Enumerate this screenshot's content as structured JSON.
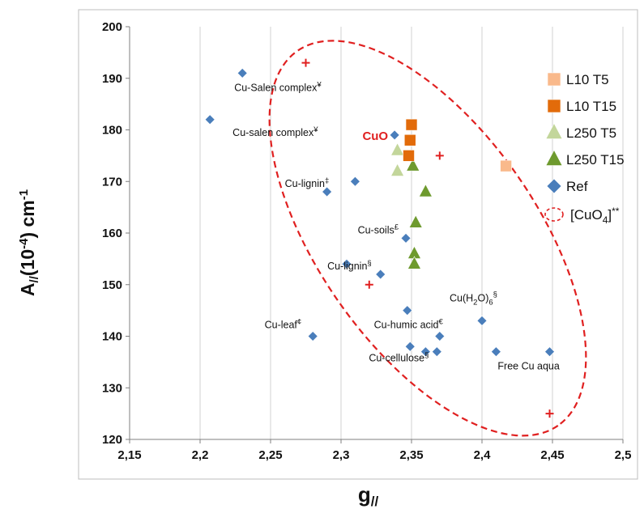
{
  "chart_data": {
    "type": "scatter",
    "xlabel": "g//",
    "ylabel": "A//(10-4) cm-1",
    "xlim": [
      2.15,
      2.5
    ],
    "ylim": [
      120,
      200
    ],
    "x_ticks": [
      "2,15",
      "2,2",
      "2,25",
      "2,3",
      "2,35",
      "2,4",
      "2,45",
      "2,5"
    ],
    "y_ticks": [
      "120",
      "130",
      "140",
      "150",
      "160",
      "170",
      "180",
      "190",
      "200"
    ],
    "grid": "vertical",
    "legend_position": "right",
    "series": [
      {
        "name": "L10 T5",
        "marker": "square",
        "color": "#f9b98b",
        "points": [
          [
            2.417,
            173
          ]
        ]
      },
      {
        "name": "L10 T15",
        "marker": "square",
        "color": "#e26b0a",
        "points": [
          [
            2.35,
            181
          ],
          [
            2.349,
            178
          ],
          [
            2.348,
            175
          ]
        ]
      },
      {
        "name": "L250 T5",
        "marker": "triangle",
        "color": "#c3d69b",
        "points": [
          [
            2.34,
            176
          ],
          [
            2.34,
            172
          ]
        ]
      },
      {
        "name": "L250 T15",
        "marker": "triangle",
        "color": "#6e9a2e",
        "points": [
          [
            2.351,
            173
          ],
          [
            2.36,
            168
          ],
          [
            2.353,
            162
          ],
          [
            2.352,
            156
          ],
          [
            2.352,
            154
          ]
        ]
      },
      {
        "name": "Ref",
        "marker": "diamond",
        "color": "#4a7ebb",
        "points": [
          [
            2.23,
            191
          ],
          [
            2.207,
            182
          ],
          [
            2.338,
            179
          ],
          [
            2.31,
            170
          ],
          [
            2.29,
            168
          ],
          [
            2.346,
            159
          ],
          [
            2.304,
            154
          ],
          [
            2.328,
            152
          ],
          [
            2.347,
            145
          ],
          [
            2.28,
            140
          ],
          [
            2.37,
            140
          ],
          [
            2.4,
            143
          ],
          [
            2.349,
            138
          ],
          [
            2.36,
            137
          ],
          [
            2.368,
            137
          ],
          [
            2.41,
            137
          ],
          [
            2.448,
            137
          ]
        ]
      }
    ],
    "ellipse_label": "[CuO4]**",
    "ellipse_markers": [
      [
        2.275,
        193
      ],
      [
        2.37,
        175
      ],
      [
        2.448,
        125
      ],
      [
        2.32,
        150
      ]
    ],
    "annotations": [
      {
        "text": "Cu-Salen complex¥",
        "x": 2.23,
        "y": 191
      },
      {
        "text": "Cu-salen complex¥",
        "x": 2.207,
        "y": 182
      },
      {
        "text": "CuO",
        "x": 2.338,
        "y": 179
      },
      {
        "text": "Cu-lignin‡",
        "x": 2.29,
        "y": 168
      },
      {
        "text": "Cu-soils£",
        "x": 2.346,
        "y": 159
      },
      {
        "text": "Cu-lignin§",
        "x": 2.328,
        "y": 152
      },
      {
        "text": "Cu(H2O)6§",
        "x": 2.4,
        "y": 143
      },
      {
        "text": "Cu-leaf¢",
        "x": 2.28,
        "y": 140
      },
      {
        "text": "Cu-humic acid€",
        "x": 2.37,
        "y": 140
      },
      {
        "text": "Cu-cellulose§",
        "x": 2.36,
        "y": 137
      },
      {
        "text": "Free Cu aqua",
        "x": 2.41,
        "y": 137
      }
    ]
  }
}
